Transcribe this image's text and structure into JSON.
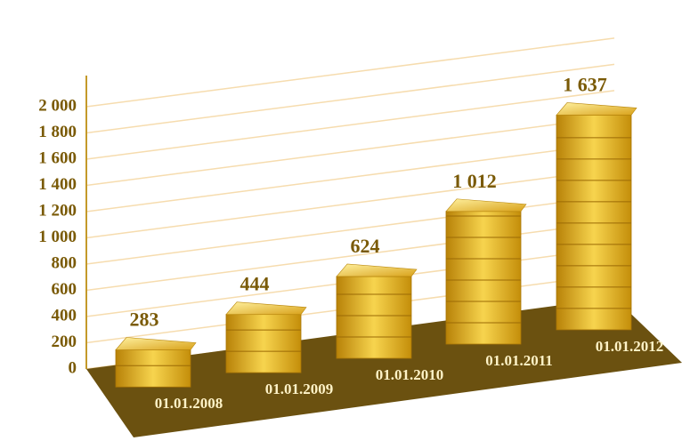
{
  "chart_data": {
    "type": "bar",
    "categories": [
      "01.01.2008",
      "01.01.2009",
      "01.01.2010",
      "01.01.2011",
      "01.01.2012"
    ],
    "values": [
      283,
      444,
      624,
      1012,
      1637
    ],
    "value_labels": [
      "283",
      "444",
      "624",
      "1 012",
      "1 637"
    ],
    "color": "#e8b520",
    "ylim": [
      0,
      2000
    ],
    "yticks": [
      0,
      200,
      400,
      600,
      800,
      {
        "value": 1000,
        "label": "1 000"
      },
      {
        "value": 1200,
        "label": "1 200"
      },
      {
        "value": 1400,
        "label": "1 400"
      },
      {
        "value": 1600,
        "label": "1 600"
      },
      {
        "value": 1800,
        "label": "1 800"
      },
      {
        "value": 2000,
        "label": "2 000"
      }
    ],
    "grid": true
  }
}
